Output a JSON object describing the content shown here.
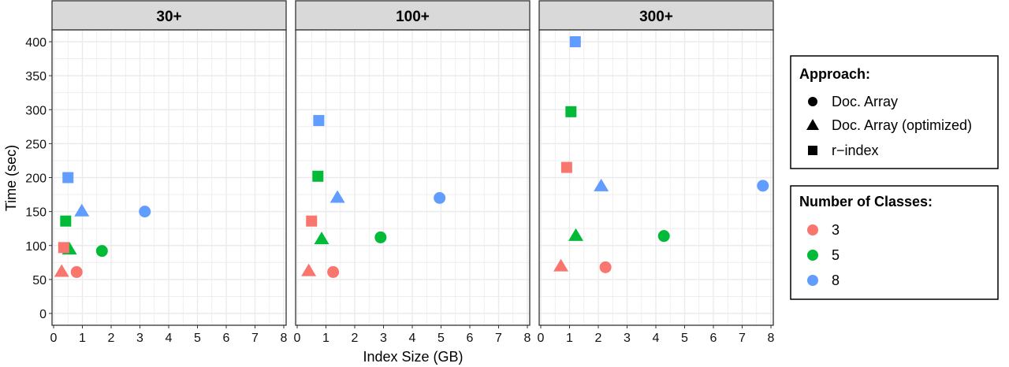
{
  "chart_data": {
    "type": "scatter",
    "xlabel": "Index Size (GB)",
    "ylabel": "Time (sec)",
    "xlim": [
      0,
      8
    ],
    "ylim": [
      0,
      400
    ],
    "xticks": [
      "0",
      "1",
      "2",
      "3",
      "4",
      "5",
      "6",
      "7",
      "8"
    ],
    "yticks": [
      "0",
      "50",
      "100",
      "150",
      "200",
      "250",
      "300",
      "350",
      "400"
    ],
    "grid": true,
    "legend_position": "right",
    "legend": {
      "shape_title": "Approach:",
      "shapes": [
        {
          "label": "Doc. Array",
          "shape": "circle"
        },
        {
          "label": "Doc. Array (optimized)",
          "shape": "triangle"
        },
        {
          "label": "r−index",
          "shape": "square"
        }
      ],
      "color_title": "Number of Classes:",
      "colors": [
        {
          "label": "3",
          "color": "#F8766D"
        },
        {
          "label": "5",
          "color": "#00BA38"
        },
        {
          "label": "8",
          "color": "#619CFF"
        }
      ]
    },
    "panels": [
      {
        "title": "30+",
        "points": [
          {
            "approach": "Doc. Array",
            "classes": "3",
            "x": 0.8,
            "y": 61
          },
          {
            "approach": "Doc. Array",
            "classes": "5",
            "x": 1.68,
            "y": 92
          },
          {
            "approach": "Doc. Array",
            "classes": "8",
            "x": 3.17,
            "y": 150
          },
          {
            "approach": "Doc. Array (optimized)",
            "classes": "3",
            "x": 0.28,
            "y": 62
          },
          {
            "approach": "Doc. Array (optimized)",
            "classes": "5",
            "x": 0.55,
            "y": 95
          },
          {
            "approach": "Doc. Array (optimized)",
            "classes": "8",
            "x": 0.98,
            "y": 151
          },
          {
            "approach": "r−index",
            "classes": "3",
            "x": 0.35,
            "y": 97
          },
          {
            "approach": "r−index",
            "classes": "5",
            "x": 0.42,
            "y": 136
          },
          {
            "approach": "r−index",
            "classes": "8",
            "x": 0.5,
            "y": 200
          }
        ]
      },
      {
        "title": "100+",
        "points": [
          {
            "approach": "Doc. Array",
            "classes": "3",
            "x": 1.25,
            "y": 61
          },
          {
            "approach": "Doc. Array",
            "classes": "5",
            "x": 2.9,
            "y": 112
          },
          {
            "approach": "Doc. Array",
            "classes": "8",
            "x": 4.95,
            "y": 170
          },
          {
            "approach": "Doc. Array (optimized)",
            "classes": "3",
            "x": 0.4,
            "y": 63
          },
          {
            "approach": "Doc. Array (optimized)",
            "classes": "5",
            "x": 0.85,
            "y": 110
          },
          {
            "approach": "Doc. Array (optimized)",
            "classes": "8",
            "x": 1.4,
            "y": 171
          },
          {
            "approach": "r−index",
            "classes": "3",
            "x": 0.5,
            "y": 136
          },
          {
            "approach": "r−index",
            "classes": "5",
            "x": 0.72,
            "y": 202
          },
          {
            "approach": "r−index",
            "classes": "8",
            "x": 0.75,
            "y": 284
          }
        ]
      },
      {
        "title": "300+",
        "points": [
          {
            "approach": "Doc. Array",
            "classes": "3",
            "x": 2.25,
            "y": 68
          },
          {
            "approach": "Doc. Array",
            "classes": "5",
            "x": 4.28,
            "y": 114
          },
          {
            "approach": "Doc. Array",
            "classes": "8",
            "x": 7.72,
            "y": 188
          },
          {
            "approach": "Doc. Array (optimized)",
            "classes": "3",
            "x": 0.7,
            "y": 70
          },
          {
            "approach": "Doc. Array (optimized)",
            "classes": "5",
            "x": 1.22,
            "y": 115
          },
          {
            "approach": "Doc. Array (optimized)",
            "classes": "8",
            "x": 2.1,
            "y": 188
          },
          {
            "approach": "r−index",
            "classes": "3",
            "x": 0.9,
            "y": 215
          },
          {
            "approach": "r−index",
            "classes": "5",
            "x": 1.05,
            "y": 297
          },
          {
            "approach": "r−index",
            "classes": "8",
            "x": 1.2,
            "y": 400
          }
        ]
      }
    ]
  }
}
